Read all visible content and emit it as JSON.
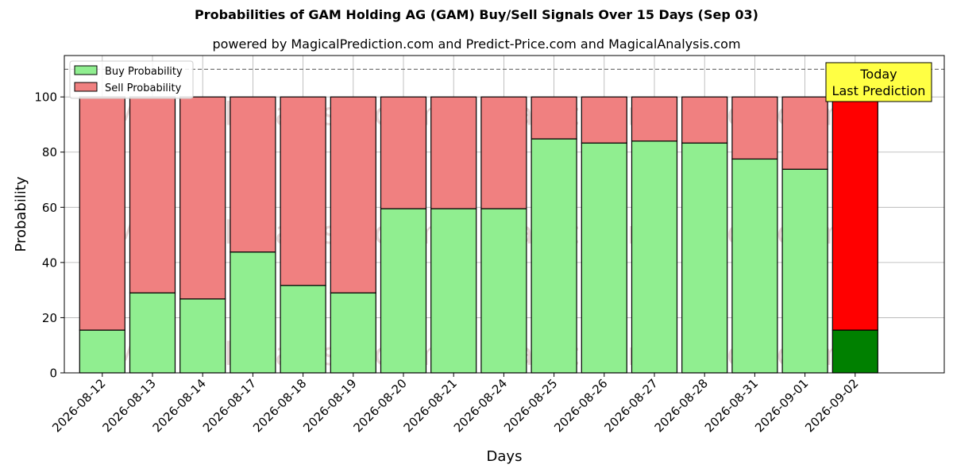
{
  "title": "Probabilities of GAM Holding AG (GAM) Buy/Sell Signals Over 15 Days (Sep 03)",
  "subtitle": "powered by MagicalPrediction.com and Predict-Price.com and MagicalAnalysis.com",
  "watermarks": [
    "MagicalAnalysis.com",
    "MagicalPrediction.com"
  ],
  "annotation": {
    "line1": "Today",
    "line2": "Last Prediction"
  },
  "colors": {
    "buy": "#90ee90",
    "sell": "#f08080",
    "buy_today": "#008000",
    "sell_today": "#ff0000",
    "annotation_bg": "#ffff44"
  },
  "chart_data": {
    "type": "bar",
    "stacked": true,
    "xlabel": "Days",
    "ylabel": "Probability",
    "ylim": [
      0,
      115
    ],
    "yticks": [
      0,
      20,
      40,
      60,
      80,
      100
    ],
    "reference_line": 110,
    "grid": true,
    "legend_position": "top-left",
    "categories": [
      "2026-08-12",
      "2026-08-13",
      "2026-08-14",
      "2026-08-17",
      "2026-08-18",
      "2026-08-19",
      "2026-08-20",
      "2026-08-21",
      "2026-08-24",
      "2026-08-25",
      "2026-08-26",
      "2026-08-27",
      "2026-08-28",
      "2026-08-31",
      "2026-09-01",
      "2026-09-02"
    ],
    "series": [
      {
        "name": "Buy Probability",
        "values": [
          15.5,
          29,
          26.8,
          43.8,
          31.7,
          29,
          59.5,
          59.5,
          59.5,
          84.8,
          83.3,
          84,
          83.3,
          77.5,
          73.8,
          15.5
        ]
      },
      {
        "name": "Sell Probability",
        "values": [
          84.5,
          71,
          73.2,
          56.2,
          68.3,
          71,
          40.5,
          40.5,
          40.5,
          15.2,
          16.7,
          16,
          16.7,
          22.5,
          26.2,
          84.5
        ]
      }
    ]
  }
}
